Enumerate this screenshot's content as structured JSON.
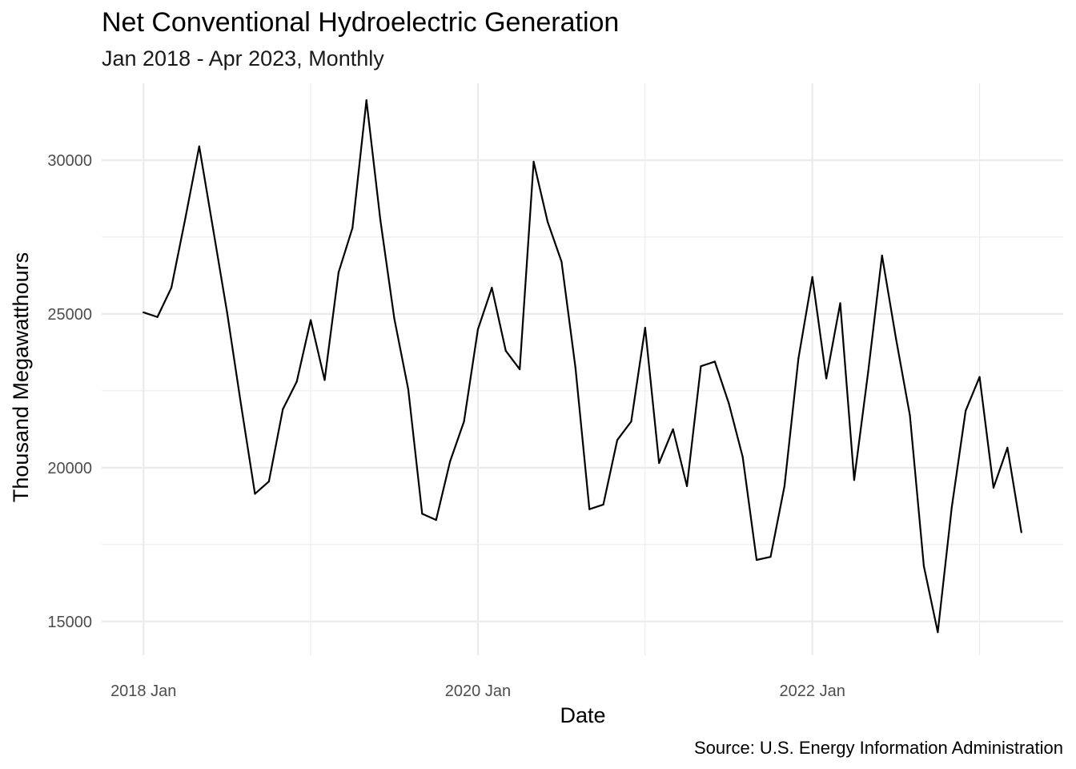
{
  "chart_data": {
    "type": "line",
    "title": "Net Conventional Hydroelectric Generation",
    "subtitle": "Jan 2018 - Apr 2023, Monthly",
    "caption": "Source: U.S. Energy Information Administration",
    "xlabel": "Date",
    "ylabel": "Thousand Megawatthours",
    "x_tick_labels": [
      "2018 Jan",
      "2020 Jan",
      "2022 Jan"
    ],
    "y_tick_labels": [
      "15000",
      "20000",
      "25000",
      "30000"
    ],
    "y_ticks": [
      15000,
      20000,
      25000,
      30000
    ],
    "ylim": [
      13900,
      32500
    ],
    "xlim": [
      "2017-10",
      "2023-07"
    ],
    "grid": true,
    "line_color": "#000000",
    "x": [
      "2018-01",
      "2018-02",
      "2018-03",
      "2018-04",
      "2018-05",
      "2018-06",
      "2018-07",
      "2018-08",
      "2018-09",
      "2018-10",
      "2018-11",
      "2018-12",
      "2019-01",
      "2019-02",
      "2019-03",
      "2019-04",
      "2019-05",
      "2019-06",
      "2019-07",
      "2019-08",
      "2019-09",
      "2019-10",
      "2019-11",
      "2019-12",
      "2020-01",
      "2020-02",
      "2020-03",
      "2020-04",
      "2020-05",
      "2020-06",
      "2020-07",
      "2020-08",
      "2020-09",
      "2020-10",
      "2020-11",
      "2020-12",
      "2021-01",
      "2021-02",
      "2021-03",
      "2021-04",
      "2021-05",
      "2021-06",
      "2021-07",
      "2021-08",
      "2021-09",
      "2021-10",
      "2021-11",
      "2021-12",
      "2022-01",
      "2022-02",
      "2022-03",
      "2022-04",
      "2022-05",
      "2022-06",
      "2022-07",
      "2022-08",
      "2022-09",
      "2022-10",
      "2022-11",
      "2022-12",
      "2023-01",
      "2023-02",
      "2023-03",
      "2023-04"
    ],
    "values": [
      25050,
      24900,
      25850,
      28100,
      30450,
      27750,
      25050,
      22050,
      19150,
      19550,
      21900,
      22800,
      24800,
      22850,
      26350,
      27800,
      31950,
      28050,
      24850,
      22550,
      18500,
      18300,
      20200,
      21500,
      24500,
      25850,
      23800,
      23200,
      29950,
      28000,
      26700,
      23250,
      18650,
      18800,
      20900,
      21500,
      24550,
      20150,
      21250,
      19400,
      23300,
      23450,
      22100,
      20350,
      17000,
      17100,
      19400,
      23550,
      26200,
      22900,
      25350,
      19600,
      23100,
      26900,
      24200,
      21700,
      16800,
      14650,
      18700,
      21850,
      22950,
      19350,
      20650,
      17900
    ]
  }
}
